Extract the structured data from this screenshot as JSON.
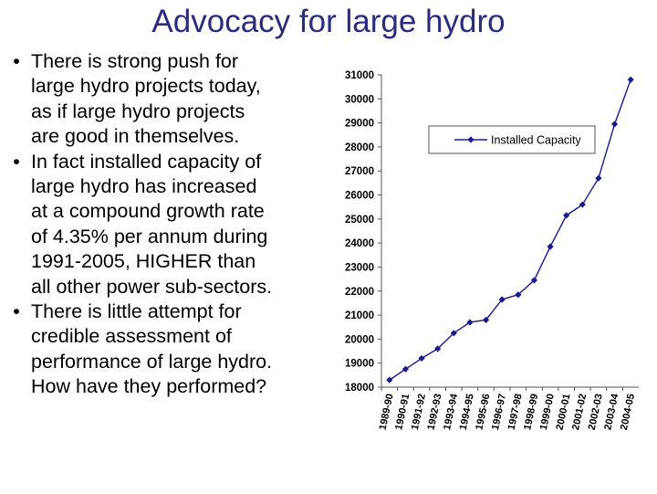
{
  "slide": {
    "title": "Advocacy for large hydro",
    "bullet_marker": "•",
    "bullets": [
      [
        "There is strong push for",
        "large hydro projects today,",
        "as if large hydro projects",
        "are good in themselves."
      ],
      [
        "In fact installed capacity of",
        "large hydro has increased",
        "at a compound growth rate",
        "of 4.35% per annum during",
        "1991-2005, HIGHER than",
        "all other power sub-sectors."
      ],
      [
        "There is little attempt for",
        "credible assessment of",
        "performance of large hydro.",
        "How have they performed?"
      ]
    ]
  },
  "colors": {
    "title": "#2b2b7f",
    "series_line": "#1a1a8c",
    "axis": "#555555",
    "text": "#000000"
  },
  "chart_data": {
    "type": "line",
    "categories": [
      "1989-90",
      "1990-91",
      "1991-92",
      "1992-93",
      "1993-94",
      "1994-95",
      "1995-96",
      "1996-97",
      "1997-98",
      "1998-99",
      "1999-00",
      "2000-01",
      "2001-02",
      "2002-03",
      "2003-04",
      "2004-05"
    ],
    "series": [
      {
        "name": "Installed Capacity",
        "values": [
          18300,
          18750,
          19200,
          19600,
          20250,
          20700,
          20800,
          21650,
          21850,
          22450,
          23850,
          25150,
          25600,
          26700,
          28950,
          30800
        ]
      }
    ],
    "ylim": [
      18000,
      31000
    ],
    "yticks": [
      18000,
      19000,
      20000,
      21000,
      22000,
      23000,
      24000,
      25000,
      26000,
      27000,
      28000,
      29000,
      30000,
      31000
    ],
    "grid": false,
    "legend_position": "top",
    "marker": "diamond"
  }
}
